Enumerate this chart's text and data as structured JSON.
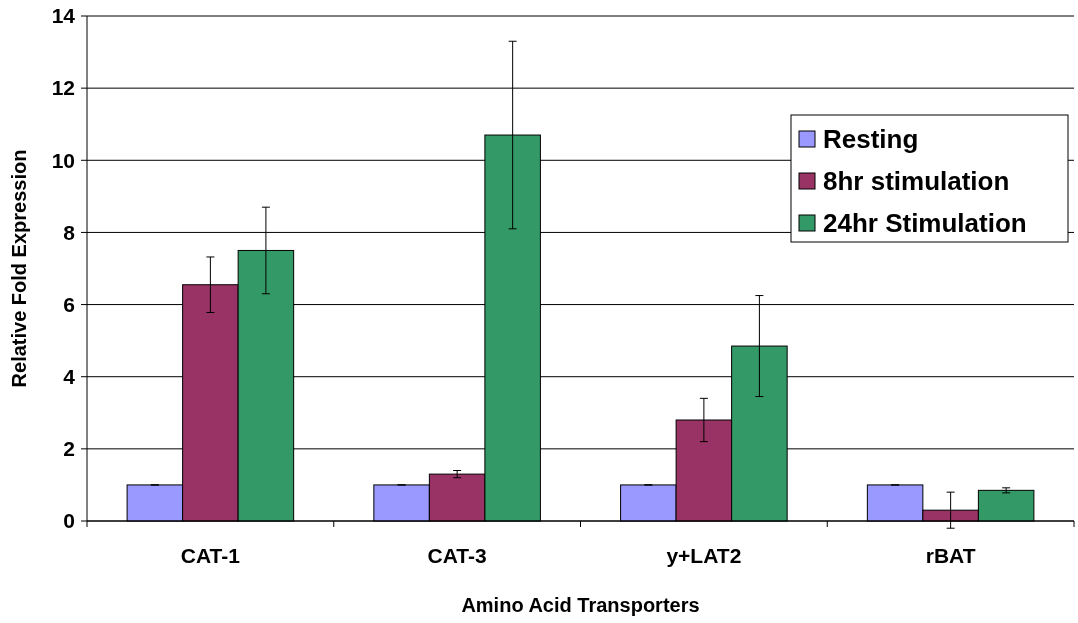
{
  "chart_data": {
    "type": "bar",
    "xlabel": "Amino Acid Transporters",
    "ylabel": "Relative Fold Expression",
    "categories": [
      "CAT-1",
      "CAT-3",
      "y+LAT2",
      "rBAT"
    ],
    "series": [
      {
        "name": "Resting",
        "color": "#9999ff",
        "values": [
          1,
          1,
          1,
          1
        ],
        "errors": [
          0,
          0,
          0,
          0
        ]
      },
      {
        "name": "8hr stimulation",
        "color": "#993366",
        "values": [
          6.55,
          1.3,
          2.8,
          0.3
        ],
        "errors": [
          0.77,
          0.1,
          0.6,
          0.5
        ]
      },
      {
        "name": "24hr Stimulation",
        "color": "#339966",
        "values": [
          7.5,
          10.7,
          4.85,
          0.85
        ],
        "errors": [
          1.2,
          2.6,
          1.4,
          0.07
        ]
      }
    ],
    "ylim": [
      0,
      14
    ],
    "yticks": [
      0,
      2,
      4,
      6,
      8,
      10,
      12,
      14
    ],
    "grid": "y",
    "legend": "top right"
  }
}
